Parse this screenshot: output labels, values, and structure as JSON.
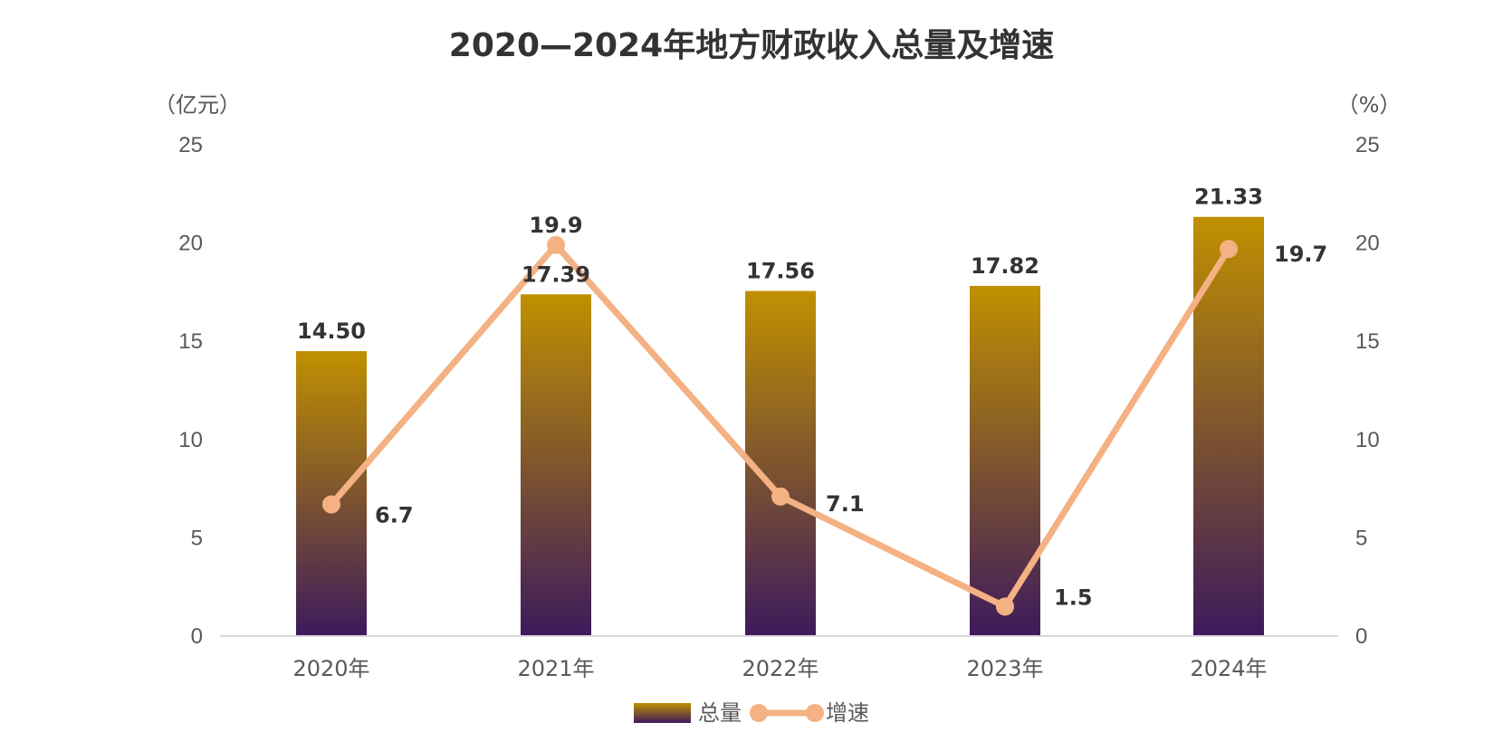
{
  "chart_data": {
    "type": "bar",
    "title": "2020—2024年地方财政收入总量及增速",
    "left_unit": "（亿元）",
    "right_unit": "（%）",
    "categories": [
      "2020年",
      "2021年",
      "2022年",
      "2023年",
      "2024年"
    ],
    "y_left": {
      "min": 0,
      "max": 25,
      "ticks": [
        "0",
        "5",
        "10",
        "15",
        "20",
        "25"
      ]
    },
    "y_right": {
      "min": 0,
      "max": 25,
      "ticks": [
        "0",
        "5",
        "10",
        "15",
        "20",
        "25"
      ]
    },
    "series": [
      {
        "name": "总量",
        "kind": "bar",
        "axis": "left",
        "values": [
          14.5,
          17.39,
          17.56,
          17.82,
          21.33
        ],
        "labels": [
          "14.50",
          "17.39",
          "17.56",
          "17.82",
          "21.33"
        ],
        "gradient_top": "#c09000",
        "gradient_bottom": "#3d1a5c"
      },
      {
        "name": "增速",
        "kind": "line",
        "axis": "right",
        "values": [
          6.7,
          19.9,
          7.1,
          1.5,
          19.7
        ],
        "labels": [
          "6.7",
          "19.9",
          "7.1",
          "1.5",
          "19.7"
        ],
        "color": "#f4b183"
      }
    ],
    "grid": false,
    "legend_position": "bottom"
  }
}
